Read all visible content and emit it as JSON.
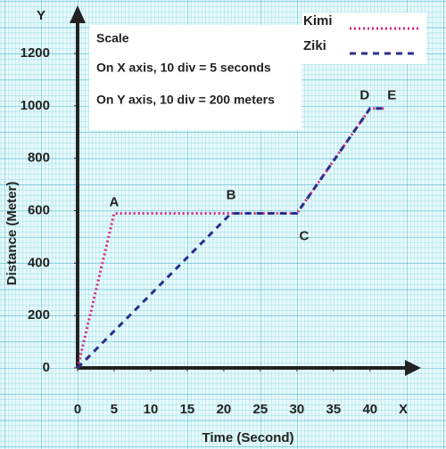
{
  "chart_data": {
    "type": "line",
    "x_label": "Time (Second)",
    "y_label": "Distance (Meter)",
    "x_axis_name": "X",
    "y_axis_name": "Y",
    "xlim": [
      0,
      46
    ],
    "ylim": [
      0,
      1370
    ],
    "xticks": [
      0,
      5,
      10,
      15,
      20,
      25,
      30,
      35,
      40
    ],
    "yticks": [
      0,
      200,
      400,
      600,
      800,
      1000,
      1200
    ],
    "grid": true,
    "series": [
      {
        "name": "Kimi",
        "color": "#d6247a",
        "dash": "dotted",
        "x": [
          0,
          5,
          30,
          40,
          42
        ],
        "values": [
          0,
          590,
          590,
          990,
          990
        ]
      },
      {
        "name": "Ziki",
        "color": "#2b2f8c",
        "dash": "dashed",
        "x": [
          0,
          21,
          30,
          40,
          42
        ],
        "values": [
          0,
          590,
          590,
          990,
          990
        ]
      }
    ],
    "annotations": [
      {
        "text": "A",
        "x": 5,
        "y": 590
      },
      {
        "text": "B",
        "x": 21,
        "y": 590
      },
      {
        "text": "C",
        "x": 30,
        "y": 590
      },
      {
        "text": "D",
        "x": 40,
        "y": 990
      },
      {
        "text": "E",
        "x": 42,
        "y": 990
      }
    ],
    "scale_box": [
      "Scale",
      "On X axis,  10 div = 5 seconds",
      "On Y axis,  10 div = 200 meters"
    ]
  }
}
